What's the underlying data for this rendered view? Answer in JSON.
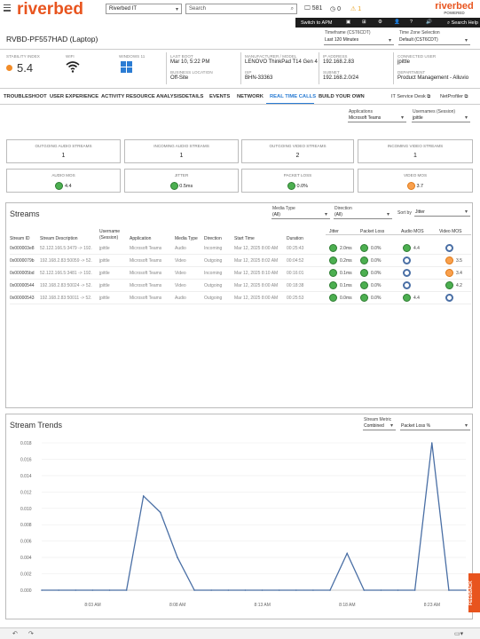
{
  "header": {
    "brand": "riverbed",
    "workspace_select": "Riverbed IT",
    "search_placeholder": "Search",
    "count_devices": "581",
    "count_zero": "0",
    "count_alerts": "1",
    "brand_right": "riverbed",
    "brand_right_sub": "POWERED",
    "switch_apm": "Switch to APM",
    "search_help": "Search Help"
  },
  "device": {
    "title": "RVBD-PF557HAD (Laptop)",
    "timeframe_label": "Timeframe (CST6CDT)",
    "timeframe_value": "Last 120 Minutes",
    "timezone_label": "Time Zone Selection",
    "timezone_value": "Default (CST6CDT)"
  },
  "info": {
    "stability_label": "STABILITY INDEX",
    "stability_value": "5.4",
    "wifi_label": "WIFI",
    "windows_label": "WINDOWS 11",
    "lastboot_label": "LAST BOOT",
    "lastboot_value": "Mar 10, 5:22 PM",
    "bizloc_label": "BUSINESS LOCATION",
    "bizloc_value": "Off-Site",
    "mfr_label": "MANUFACTURER / MODEL",
    "mfr_value": "LENOVO ThinkPad T14 Gen 4",
    "isp_label": "ISP",
    "isp_value": "BHN-33363",
    "ip_label": "IP ADDRESS",
    "ip_value": "192.168.2.83",
    "subnet_label": "SUBNET",
    "subnet_value": "192.168.2.0/24",
    "user_label": "CONNECTED USER",
    "user_value": "jpittle",
    "dept_label": "DEPARTMENT",
    "dept_value": "Product Management - Alluvio"
  },
  "tabs": [
    "TROUBLESHOOT",
    "USER EXPERIENCE",
    "ACTIVITY RESOURCE ANALYSIS",
    "DETAILS",
    "EVENTS",
    "NETWORK",
    "REAL TIME CALLS",
    "BUILD YOUR OWN"
  ],
  "tab_links": {
    "service_desk": "IT Service Desk",
    "netprofiler": "NetProfiler"
  },
  "filters": {
    "apps_label": "Applications",
    "apps_value": "Microsoft Teams",
    "users_label": "Usernames (Session)",
    "users_value": "jpittle"
  },
  "kpis": {
    "out_audio_label": "OUTGOING AUDIO STREAMS",
    "out_audio_value": "1",
    "in_audio_label": "INCOMING AUDIO STREAMS",
    "in_audio_value": "1",
    "out_video_label": "OUTGOING VIDEO STREAMS",
    "out_video_value": "2",
    "in_video_label": "INCOMING VIDEO STREAMS",
    "in_video_value": "1",
    "audio_mos_label": "AUDIO MOS",
    "audio_mos_value": "4.4",
    "jitter_label": "JITTER",
    "jitter_value": "0.5ms",
    "packet_loss_label": "PACKET LOSS",
    "packet_loss_value": "0.0%",
    "video_mos_label": "VIDEO MOS",
    "video_mos_value": "3.7"
  },
  "streams": {
    "title": "Streams",
    "media_type_label": "Media Type",
    "media_type_value": "(All)",
    "direction_label": "Direction",
    "direction_value": "(All)",
    "sortby_label": "Sort by",
    "sortby_value": "Jitter",
    "columns": [
      "Stream ID",
      "Stream Description",
      "Username (Session)",
      "Application",
      "Media Type",
      "Direction",
      "Start Time",
      "Duration",
      "Jitter",
      "Packet Loss",
      "Audio MOS",
      "Video MOS"
    ],
    "rows": [
      {
        "id": "0x000003e8",
        "desc": "52.122.166.5:3479 -> 192.",
        "user": "jpittle",
        "app": "Microsoft Teams",
        "media": "Audio",
        "dir": "Incoming",
        "start": "Mar 12, 2025 8:00 AM",
        "dur": "00:25:43",
        "jitter": "2.0ms",
        "loss": "0.0%",
        "amos": "4.4",
        "vmos": ""
      },
      {
        "id": "0x0000079b",
        "desc": "192.168.2.83:50059 -> 52.",
        "user": "jpittle",
        "app": "Microsoft Teams",
        "media": "Video",
        "dir": "Outgoing",
        "start": "Mar 12, 2025 8:02 AM",
        "dur": "00:04:52",
        "jitter": "0.2ms",
        "loss": "0.0%",
        "amos": "",
        "vmos": "3.5"
      },
      {
        "id": "0x000005bd",
        "desc": "52.122.166.5:3481 -> 192.",
        "user": "jpittle",
        "app": "Microsoft Teams",
        "media": "Video",
        "dir": "Incoming",
        "start": "Mar 12, 2025 8:10 AM",
        "dur": "00:16:01",
        "jitter": "0.1ms",
        "loss": "0.0%",
        "amos": "",
        "vmos": "3.4"
      },
      {
        "id": "0x00000544",
        "desc": "192.168.2.83:50024 -> 52.",
        "user": "jpittle",
        "app": "Microsoft Teams",
        "media": "Video",
        "dir": "Outgoing",
        "start": "Mar 12, 2025 8:00 AM",
        "dur": "00:18:38",
        "jitter": "0.1ms",
        "loss": "0.0%",
        "amos": "",
        "vmos": "4.2"
      },
      {
        "id": "0x00000543",
        "desc": "192.168.2.83:50011 -> 52.",
        "user": "jpittle",
        "app": "Microsoft Teams",
        "media": "Audio",
        "dir": "Outgoing",
        "start": "Mar 12, 2025 8:00 AM",
        "dur": "00:25:53",
        "jitter": "0.0ms",
        "loss": "0.0%",
        "amos": "4.4",
        "vmos": ""
      }
    ]
  },
  "trends": {
    "title": "Stream Trends",
    "metric_label": "Stream Metric",
    "combined_value": "Combined",
    "metric_value": "Packet Loss %"
  },
  "feedback": "FEEDBACK",
  "colors": {
    "brand": "#e8541e",
    "line": "#4a6fa5",
    "good": "#4caf50",
    "warn": "#f9a04d"
  },
  "chart_data": {
    "type": "line",
    "title": "",
    "ylim": [
      0,
      0.018
    ],
    "yticks": [
      "0.000",
      "0.002",
      "0.004",
      "0.006",
      "0.008",
      "0.010",
      "0.012",
      "0.014",
      "0.016",
      "0.018"
    ],
    "xticks": [
      "8:03 AM",
      "8:08 AM",
      "8:13 AM",
      "8:18 AM",
      "8:23 AM"
    ],
    "x": [
      "8:00",
      "8:01",
      "8:02",
      "8:03",
      "8:04",
      "8:05",
      "8:06",
      "8:07",
      "8:08",
      "8:09",
      "8:10",
      "8:11",
      "8:12",
      "8:13",
      "8:14",
      "8:15",
      "8:16",
      "8:17",
      "8:18",
      "8:19",
      "8:20",
      "8:21",
      "8:22",
      "8:23",
      "8:24",
      "8:25"
    ],
    "series": [
      {
        "values": [
          0,
          0,
          0,
          0,
          0,
          0,
          0.0115,
          0.0095,
          0.004,
          0,
          0,
          0,
          0,
          0,
          0,
          0,
          0,
          0,
          0.0045,
          0,
          0,
          0,
          0,
          0.018,
          0,
          0
        ]
      }
    ]
  }
}
